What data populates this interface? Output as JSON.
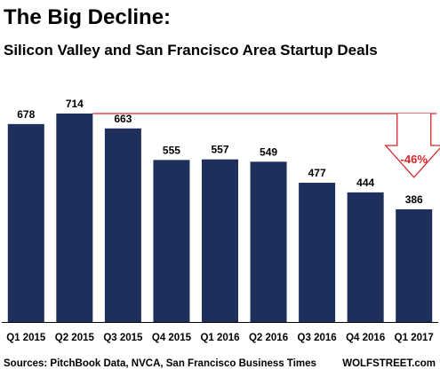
{
  "chart_data": {
    "type": "bar",
    "title": "The Big Decline:",
    "subtitle": "Silicon Valley and San Francisco Area Startup Deals",
    "categories": [
      "Q1 2015",
      "Q2 2015",
      "Q3 2015",
      "Q4 2015",
      "Q1 2016",
      "Q2 2016",
      "Q3 2016",
      "Q4 2016",
      "Q1 2017"
    ],
    "values": [
      678,
      714,
      663,
      555,
      557,
      549,
      477,
      444,
      386
    ],
    "data_labels": [
      "678",
      "714",
      "663",
      "555",
      "557",
      "549",
      "477",
      "444",
      "386"
    ],
    "ylim": [
      0,
      714
    ],
    "grid": false,
    "legend": "none",
    "annotation": {
      "text": "-46%",
      "from_category": "Q2 2015",
      "to_category": "Q1 2017",
      "reference_value": 714
    }
  },
  "footer": {
    "source": "Sources: PitchBook Data, NVCA, San Francisco Business Times",
    "brand": "WOLFSTREET.com"
  },
  "colors": {
    "bar": "#1f2f5c",
    "annotation": "#d9262a",
    "text": "#000000",
    "background": "#ffffff"
  }
}
